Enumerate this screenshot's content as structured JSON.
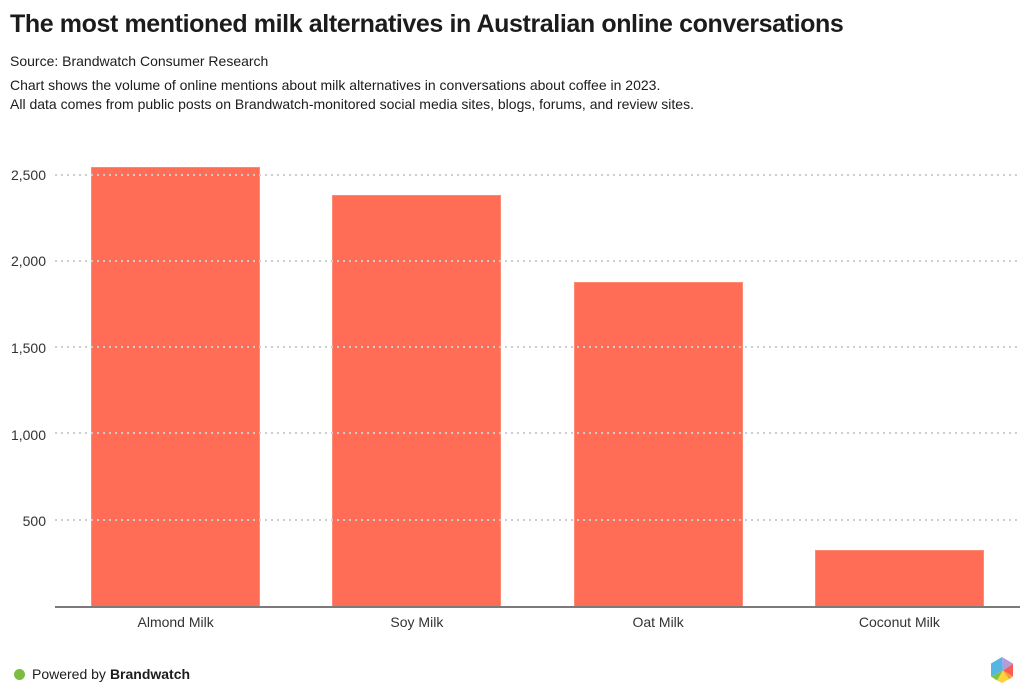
{
  "header": {
    "title": "The most mentioned milk alternatives in Australian online conversations",
    "source": "Source: Brandwatch Consumer Research",
    "description_line1": "Chart shows the volume of online mentions about milk alternatives in conversations about coffee in 2023.",
    "description_line2": "All data comes from public posts on Brandwatch-monitored social media sites, blogs, forums, and review sites."
  },
  "chart_data": {
    "type": "bar",
    "categories": [
      "Almond Milk",
      "Soy Milk",
      "Oat Milk",
      "Coconut Milk"
    ],
    "values": [
      2545,
      2380,
      1875,
      325
    ],
    "title": "The most mentioned milk alternatives in Australian online conversations",
    "xlabel": "",
    "ylabel": "",
    "ylim": [
      0,
      2642
    ],
    "yticks": [
      500,
      1000,
      1500,
      2000,
      2500
    ],
    "legend": "none",
    "grid": "horizontal-dashed",
    "bar_color": "#FF6D56",
    "gridline_color": "#cdcdcd",
    "axis_line_color": "#7b7b7b",
    "tick_label_color": "#333333"
  },
  "footer": {
    "powered_by": "Powered by",
    "brand": "Brandwatch",
    "dot_color": "#7bbd42",
    "logo_name": "brandwatch-hexagon-logo",
    "logo_colors": {
      "blue": "#55B6E3",
      "purple": "#B49BDC",
      "red": "#F95E55",
      "orange": "#F9A02D",
      "yellow": "#FFD23C",
      "green": "#7DC243"
    }
  }
}
